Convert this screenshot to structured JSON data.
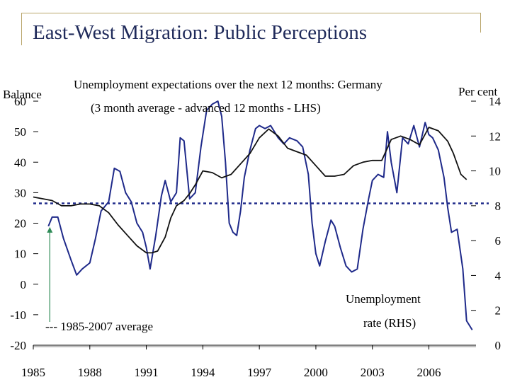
{
  "slide": {
    "title": "East-West Migration: Public Perceptions"
  },
  "chart_data": {
    "type": "line",
    "title": "Unemployment expectations over the next 12 months: Germany",
    "subtitle": "(3 month average - advanced 12 months - LHS)",
    "left_axis": {
      "label": "Balance",
      "ticks": [
        "60",
        "50",
        "40",
        "30",
        "20",
        "10",
        "0",
        "-10",
        "-20"
      ],
      "ylim": [
        -20,
        60
      ]
    },
    "right_axis": {
      "label": "Per cent",
      "ticks": [
        "14",
        "12",
        "10",
        "8",
        "6",
        "4",
        "2",
        "0"
      ],
      "ylim": [
        0,
        14
      ]
    },
    "x_axis": {
      "ticks": [
        "1985",
        "1988",
        "1991",
        "1994",
        "1997",
        "2000",
        "2003",
        "2006"
      ],
      "xlim": [
        1985,
        2008.5
      ]
    },
    "reference_line": {
      "label": "--- 1985-2007 average",
      "value": 26.5,
      "axis": "left",
      "color": "#1f2a8a"
    },
    "annotations": {
      "unemployment_line1": "Unemployment",
      "unemployment_line2": "rate (RHS)"
    },
    "colors": {
      "expectations": "#1f2a8a",
      "unemployment": "#111111",
      "accent": "#b9a56a",
      "title": "#1f2a5a"
    },
    "series": [
      {
        "name": "Unemployment expectations (3 month average - advanced 12 months - LHS)",
        "axis": "left",
        "color": "#1f2a8a",
        "x": [
          1985.8,
          1986.0,
          1986.3,
          1986.6,
          1987.0,
          1987.3,
          1987.6,
          1988.0,
          1988.3,
          1988.6,
          1989.0,
          1989.3,
          1989.6,
          1989.9,
          1990.2,
          1990.5,
          1990.8,
          1991.0,
          1991.2,
          1991.5,
          1991.8,
          1992.0,
          1992.3,
          1992.6,
          1992.8,
          1993.0,
          1993.3,
          1993.6,
          1993.9,
          1994.2,
          1994.5,
          1994.8,
          1995.0,
          1995.2,
          1995.4,
          1995.6,
          1995.8,
          1996.0,
          1996.2,
          1996.5,
          1996.8,
          1997.0,
          1997.3,
          1997.6,
          1998.0,
          1998.3,
          1998.6,
          1999.0,
          1999.3,
          1999.6,
          1999.8,
          2000.0,
          2000.2,
          2000.5,
          2000.8,
          2001.0,
          2001.3,
          2001.6,
          2001.9,
          2002.2,
          2002.5,
          2002.8,
          2003.0,
          2003.3,
          2003.6,
          2003.8,
          2004.0,
          2004.3,
          2004.6,
          2004.9,
          2005.2,
          2005.5,
          2005.8,
          2006.0,
          2006.2,
          2006.5,
          2006.8,
          2007.0,
          2007.2,
          2007.5,
          2007.8,
          2008.0,
          2008.3
        ],
        "values": [
          19,
          22,
          22,
          15,
          8,
          3,
          5,
          7,
          15,
          24,
          27,
          38,
          37,
          30,
          27,
          20,
          17,
          12,
          5,
          16,
          29,
          34,
          27,
          30,
          48,
          47,
          28,
          30,
          45,
          57,
          59,
          60,
          55,
          40,
          20,
          17,
          16,
          24,
          35,
          44,
          51,
          52,
          51,
          52,
          48,
          46,
          48,
          47,
          45,
          36,
          20,
          10,
          6,
          14,
          21,
          19,
          12,
          6,
          4,
          5,
          18,
          28,
          34,
          36,
          35,
          50,
          40,
          30,
          48,
          46,
          52,
          45,
          53,
          49,
          48,
          44,
          35,
          25,
          17,
          18,
          5,
          -12,
          -15
        ]
      },
      {
        "name": "Unemployment rate (RHS)",
        "axis": "right",
        "color": "#111111",
        "x": [
          1985.0,
          1985.5,
          1986.0,
          1986.5,
          1987.0,
          1987.5,
          1988.0,
          1988.5,
          1989.0,
          1989.5,
          1990.0,
          1990.5,
          1991.0,
          1991.3,
          1991.6,
          1992.0,
          1992.3,
          1992.6,
          1993.0,
          1993.3,
          1993.6,
          1994.0,
          1994.5,
          1995.0,
          1995.5,
          1996.0,
          1996.5,
          1997.0,
          1997.5,
          1998.0,
          1998.5,
          1999.0,
          1999.5,
          2000.0,
          2000.5,
          2001.0,
          2001.5,
          2002.0,
          2002.5,
          2003.0,
          2003.5,
          2004.0,
          2004.5,
          2005.0,
          2005.5,
          2006.0,
          2006.5,
          2007.0,
          2007.3,
          2007.7,
          2008.0
        ],
        "values": [
          8.5,
          8.4,
          8.3,
          8.0,
          8.0,
          8.1,
          8.1,
          8.0,
          7.6,
          6.9,
          6.3,
          5.7,
          5.3,
          5.3,
          5.4,
          6.2,
          7.3,
          8.0,
          8.3,
          8.7,
          9.2,
          10.0,
          9.9,
          9.6,
          9.8,
          10.4,
          11.0,
          11.9,
          12.4,
          12.0,
          11.3,
          11.1,
          10.9,
          10.3,
          9.7,
          9.7,
          9.8,
          10.3,
          10.5,
          10.6,
          10.6,
          11.8,
          12.0,
          11.8,
          11.5,
          12.5,
          12.3,
          11.7,
          11.0,
          9.8,
          9.5
        ]
      }
    ]
  }
}
